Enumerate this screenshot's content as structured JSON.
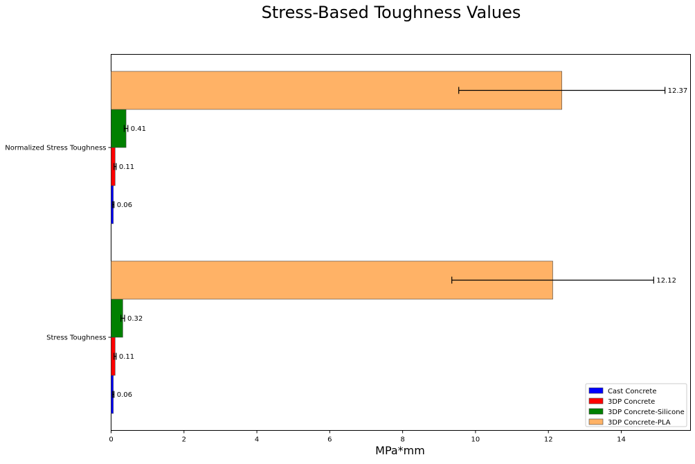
{
  "chart_data": {
    "type": "bar",
    "orientation": "horizontal",
    "title": "Stress-Based Toughness Values",
    "xlabel": "MPa*mm",
    "ylabel": "",
    "xlim": [
      0,
      15.9
    ],
    "xticks": [
      0,
      2,
      4,
      6,
      8,
      10,
      12,
      14
    ],
    "categories": [
      "Normalized Stress Toughness",
      "Stress Toughness"
    ],
    "legend_position": "bottom-right",
    "grid": false,
    "series": [
      {
        "name": "Cast Concrete",
        "color": "#0000ff",
        "values": [
          0.06,
          0.06
        ],
        "errors": [
          0.02,
          0.02
        ],
        "labels": [
          "0.06",
          "0.06"
        ]
      },
      {
        "name": "3DP Concrete",
        "color": "#ff0000",
        "values": [
          0.11,
          0.11
        ],
        "errors": [
          0.03,
          0.03
        ],
        "labels": [
          "0.11",
          "0.11"
        ]
      },
      {
        "name": "3DP Concrete-Silicone",
        "color": "#008000",
        "values": [
          0.41,
          0.32
        ],
        "errors": [
          0.05,
          0.05
        ],
        "labels": [
          "0.41",
          "0.32"
        ]
      },
      {
        "name": "3DP Concrete-PLA",
        "color": "#ffb266",
        "values": [
          12.37,
          12.12
        ],
        "errors": [
          2.83,
          2.77
        ],
        "labels": [
          "12.37",
          "12.12"
        ]
      }
    ]
  }
}
